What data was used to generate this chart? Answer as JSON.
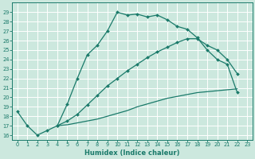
{
  "xlabel": "Humidex (Indice chaleur)",
  "bg_color": "#cce8de",
  "grid_color": "#ffffff",
  "line_color": "#1a7a6a",
  "xlim": [
    -0.5,
    23.5
  ],
  "ylim": [
    15.5,
    30.0
  ],
  "xticks": [
    0,
    1,
    2,
    3,
    4,
    5,
    6,
    7,
    8,
    9,
    10,
    11,
    12,
    13,
    14,
    15,
    16,
    17,
    18,
    19,
    20,
    21,
    22,
    23
  ],
  "yticks": [
    16,
    17,
    18,
    19,
    20,
    21,
    22,
    23,
    24,
    25,
    26,
    27,
    28,
    29
  ],
  "curve1_x": [
    0,
    1,
    2,
    3,
    4,
    5,
    6,
    7,
    8,
    9,
    10,
    11,
    12,
    13,
    14,
    15,
    16,
    17,
    18,
    19,
    20,
    21,
    22
  ],
  "curve1_y": [
    18.5,
    17.0,
    16.0,
    16.5,
    17.0,
    19.3,
    22.0,
    24.5,
    25.5,
    27.0,
    29.0,
    28.7,
    28.8,
    28.5,
    28.7,
    28.2,
    27.5,
    27.2,
    26.3,
    25.0,
    24.0,
    23.5,
    20.5
  ],
  "curve2_x": [
    4,
    5,
    6,
    7,
    8,
    9,
    10,
    11,
    12,
    13,
    14,
    15,
    16,
    17,
    18,
    19,
    20,
    21,
    22
  ],
  "curve2_y": [
    17.0,
    17.5,
    18.2,
    19.2,
    20.2,
    21.2,
    22.0,
    22.8,
    23.5,
    24.2,
    24.8,
    25.3,
    25.8,
    26.2,
    26.2,
    25.5,
    25.0,
    24.0,
    22.5
  ],
  "curve3_x": [
    4,
    5,
    6,
    7,
    8,
    9,
    10,
    11,
    12,
    13,
    14,
    15,
    16,
    17,
    18,
    19,
    20,
    21,
    22
  ],
  "curve3_y": [
    17.0,
    17.1,
    17.3,
    17.5,
    17.7,
    18.0,
    18.3,
    18.6,
    19.0,
    19.3,
    19.6,
    19.9,
    20.1,
    20.3,
    20.5,
    20.6,
    20.7,
    20.8,
    20.9
  ]
}
